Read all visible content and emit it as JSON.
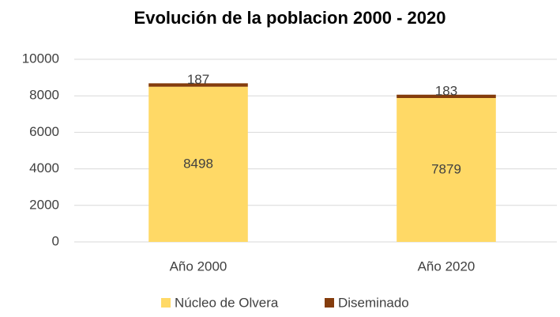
{
  "chart_data": {
    "type": "stacked_bar",
    "title": "Evolución de la poblacion 2000 - 2020",
    "categories": [
      "Año 2000",
      "Año 2020"
    ],
    "series": [
      {
        "name": "Núcleo de Olvera",
        "color": "#FFD966",
        "values": [
          8498,
          7879
        ]
      },
      {
        "name": "Diseminado",
        "color": "#843C0C",
        "values": [
          187,
          183
        ]
      }
    ],
    "ylim": [
      0,
      10000
    ],
    "yticks": [
      0,
      2000,
      4000,
      6000,
      8000,
      10000
    ],
    "grid": true,
    "legend": "bottom"
  }
}
